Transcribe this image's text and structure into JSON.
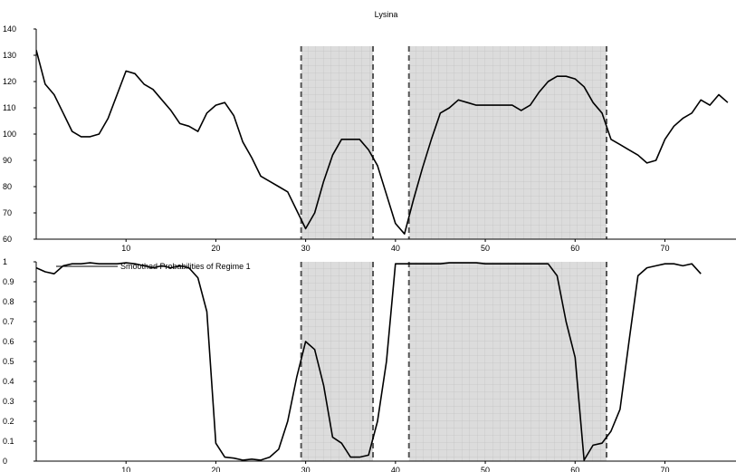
{
  "chart_data": [
    {
      "type": "line",
      "title": "Lysina",
      "xlabel": "",
      "ylabel": "",
      "xlim": [
        0,
        76
      ],
      "ylim": [
        60,
        140
      ],
      "x_ticks": [
        10,
        20,
        30,
        40,
        50,
        60,
        70
      ],
      "y_ticks": [
        60,
        70,
        80,
        90,
        100,
        110,
        120,
        130,
        140
      ],
      "grid": "shaded regions only",
      "shaded_regions": [
        [
          29.5,
          37.5
        ],
        [
          41.5,
          63.5
        ]
      ],
      "series": [
        {
          "values": [
            [
              0,
              132
            ],
            [
              1,
              119
            ],
            [
              2,
              115
            ],
            [
              3,
              108
            ],
            [
              4,
              101
            ],
            [
              5,
              99
            ],
            [
              6,
              99
            ],
            [
              7,
              100
            ],
            [
              8,
              106
            ],
            [
              9,
              115
            ],
            [
              10,
              124
            ],
            [
              11,
              123
            ],
            [
              12,
              119
            ],
            [
              13,
              117
            ],
            [
              14,
              113
            ],
            [
              15,
              109
            ],
            [
              16,
              104
            ],
            [
              17,
              103
            ],
            [
              18,
              101
            ],
            [
              19,
              108
            ],
            [
              20,
              111
            ],
            [
              21,
              112
            ],
            [
              22,
              107
            ],
            [
              23,
              97
            ],
            [
              24,
              91
            ],
            [
              25,
              84
            ],
            [
              26,
              82
            ],
            [
              27,
              80
            ],
            [
              28,
              78
            ],
            [
              29,
              71
            ],
            [
              30,
              64
            ],
            [
              31,
              70
            ],
            [
              32,
              82
            ],
            [
              33,
              92
            ],
            [
              34,
              98
            ],
            [
              35,
              98
            ],
            [
              36,
              98
            ],
            [
              37,
              94
            ],
            [
              38,
              88
            ],
            [
              39,
              77
            ],
            [
              40,
              66
            ],
            [
              41,
              62
            ],
            [
              42,
              75
            ],
            [
              43,
              87
            ],
            [
              44,
              98
            ],
            [
              45,
              108
            ],
            [
              46,
              110
            ],
            [
              47,
              113
            ],
            [
              48,
              112
            ],
            [
              49,
              111
            ],
            [
              50,
              111
            ],
            [
              51,
              111
            ],
            [
              52,
              111
            ],
            [
              53,
              111
            ],
            [
              54,
              109
            ],
            [
              55,
              111
            ],
            [
              56,
              116
            ],
            [
              57,
              120
            ],
            [
              58,
              122
            ],
            [
              59,
              122
            ],
            [
              60,
              121
            ],
            [
              61,
              118
            ],
            [
              62,
              112
            ],
            [
              63,
              108
            ],
            [
              64,
              98
            ],
            [
              65,
              96
            ],
            [
              66,
              94
            ],
            [
              67,
              92
            ],
            [
              68,
              89
            ],
            [
              69,
              90
            ],
            [
              70,
              98
            ],
            [
              71,
              103
            ],
            [
              72,
              106
            ],
            [
              73,
              108
            ],
            [
              74,
              113
            ],
            [
              75,
              111
            ],
            [
              76,
              115
            ],
            [
              77,
              112
            ]
          ]
        }
      ]
    },
    {
      "type": "line",
      "title": "",
      "xlabel": "",
      "ylabel": "",
      "xlim": [
        0,
        76
      ],
      "ylim": [
        0,
        1
      ],
      "x_ticks": [
        10,
        20,
        30,
        40,
        50,
        60,
        70
      ],
      "y_ticks": [
        0,
        0.1,
        0.2,
        0.3,
        0.4,
        0.5,
        0.6,
        0.7,
        0.8,
        0.9,
        1
      ],
      "legend": "top-left",
      "shaded_regions": [
        [
          29.5,
          37.5
        ],
        [
          41.5,
          63.5
        ]
      ],
      "series": [
        {
          "name": "Smoothed Probabilities of Regime 1",
          "values": [
            [
              0,
              0.97
            ],
            [
              1,
              0.95
            ],
            [
              2,
              0.94
            ],
            [
              3,
              0.98
            ],
            [
              4,
              0.99
            ],
            [
              5,
              0.99
            ],
            [
              6,
              0.995
            ],
            [
              7,
              0.99
            ],
            [
              8,
              0.99
            ],
            [
              9,
              0.99
            ],
            [
              10,
              0.995
            ],
            [
              11,
              0.99
            ],
            [
              12,
              0.98
            ],
            [
              13,
              0.97
            ],
            [
              14,
              0.98
            ],
            [
              15,
              0.97
            ],
            [
              16,
              0.98
            ],
            [
              17,
              0.97
            ],
            [
              18,
              0.92
            ],
            [
              19,
              0.75
            ],
            [
              20,
              0.09
            ],
            [
              21,
              0.02
            ],
            [
              22,
              0.015
            ],
            [
              23,
              0.005
            ],
            [
              24,
              0.01
            ],
            [
              25,
              0.005
            ],
            [
              26,
              0.02
            ],
            [
              27,
              0.06
            ],
            [
              28,
              0.2
            ],
            [
              29,
              0.42
            ],
            [
              30,
              0.6
            ],
            [
              31,
              0.56
            ],
            [
              32,
              0.38
            ],
            [
              33,
              0.12
            ],
            [
              34,
              0.09
            ],
            [
              35,
              0.02
            ],
            [
              36,
              0.02
            ],
            [
              37,
              0.03
            ],
            [
              38,
              0.2
            ],
            [
              39,
              0.5
            ],
            [
              40,
              0.99
            ],
            [
              41,
              0.99
            ],
            [
              42,
              0.99
            ],
            [
              43,
              0.99
            ],
            [
              44,
              0.99
            ],
            [
              45,
              0.99
            ],
            [
              46,
              0.995
            ],
            [
              47,
              0.995
            ],
            [
              48,
              0.995
            ],
            [
              49,
              0.995
            ],
            [
              50,
              0.99
            ],
            [
              51,
              0.99
            ],
            [
              52,
              0.99
            ],
            [
              53,
              0.99
            ],
            [
              54,
              0.99
            ],
            [
              55,
              0.99
            ],
            [
              56,
              0.99
            ],
            [
              57,
              0.99
            ],
            [
              58,
              0.93
            ],
            [
              59,
              0.7
            ],
            [
              60,
              0.52
            ],
            [
              61,
              0.005
            ],
            [
              62,
              0.08
            ],
            [
              63,
              0.09
            ],
            [
              64,
              0.15
            ],
            [
              65,
              0.26
            ],
            [
              66,
              0.6
            ],
            [
              67,
              0.93
            ],
            [
              68,
              0.97
            ],
            [
              69,
              0.98
            ],
            [
              70,
              0.99
            ],
            [
              71,
              0.99
            ],
            [
              72,
              0.98
            ],
            [
              73,
              0.99
            ],
            [
              74,
              0.94
            ]
          ]
        }
      ]
    }
  ]
}
